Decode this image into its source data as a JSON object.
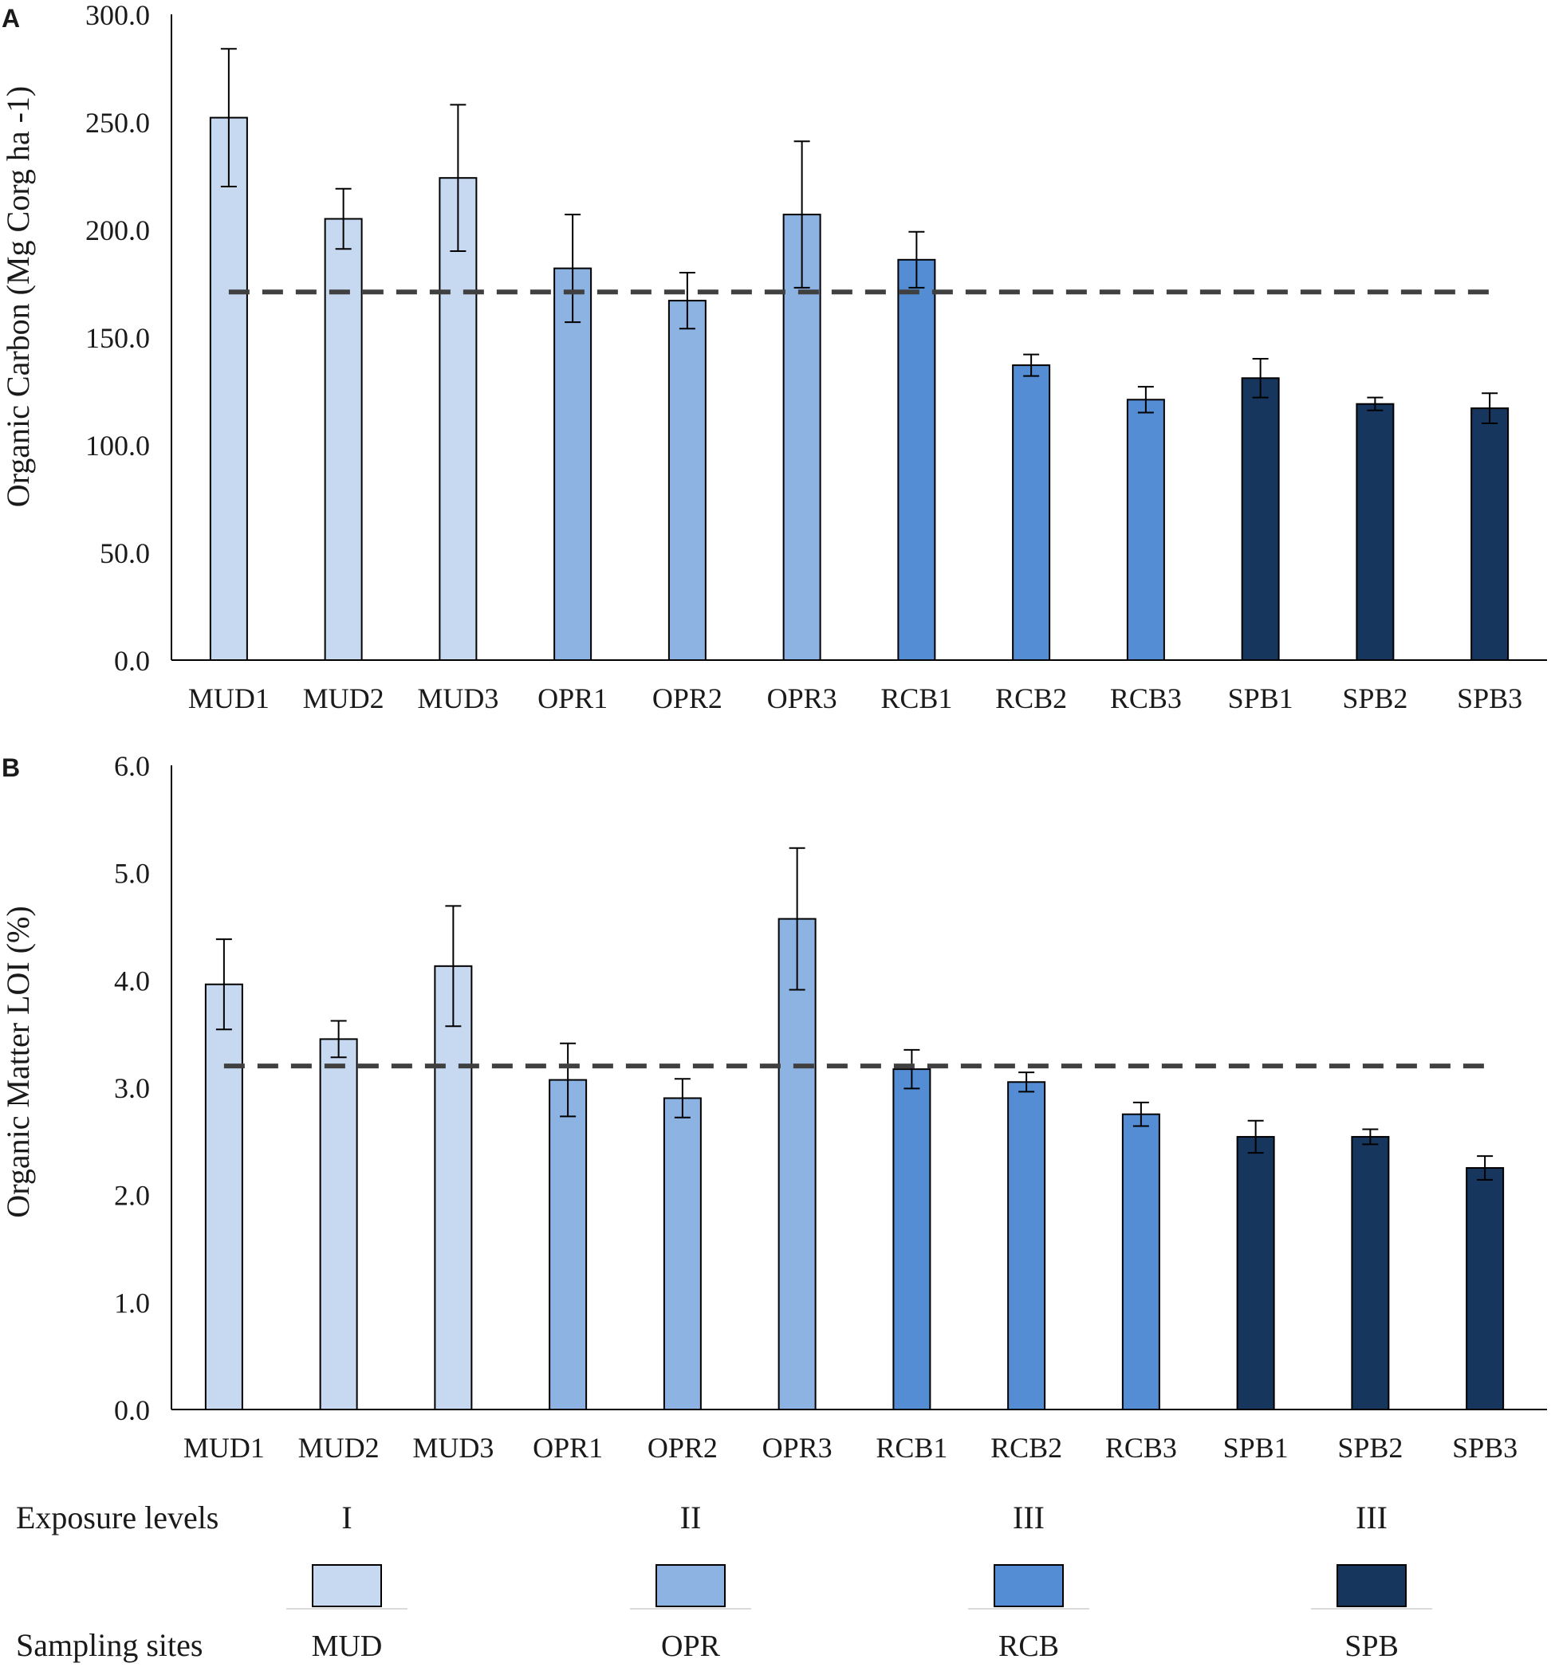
{
  "figure": {
    "exposure_label": "Exposure levels",
    "sites_label": "Sampling sites",
    "legend": [
      {
        "level": "I",
        "site": "MUD",
        "color": "#c6d9f1"
      },
      {
        "level": "II",
        "site": "OPR",
        "color": "#8db3e2"
      },
      {
        "level": "III",
        "site": "RCB",
        "color": "#548dd4"
      },
      {
        "level": "III",
        "site": "SPB",
        "color": "#17365d"
      }
    ]
  },
  "chart_data": [
    {
      "type": "bar",
      "panel": "A",
      "title": "",
      "xlabel": "",
      "ylabel": "Organic Carbon (Mg Corg ha -1)",
      "ylim": [
        0,
        300
      ],
      "ytick_values": [
        0,
        50,
        100,
        150,
        200,
        250,
        300
      ],
      "ytick_labels": [
        "0.0",
        "50.0",
        "100.0",
        "150.0",
        "200.0",
        "250.0",
        "300.0"
      ],
      "categories": [
        "MUD1",
        "MUD2",
        "MUD3",
        "OPR1",
        "OPR2",
        "OPR3",
        "RCB1",
        "RCB2",
        "RCB3",
        "SPB1",
        "SPB2",
        "SPB3"
      ],
      "values": [
        252,
        205,
        224,
        182,
        167,
        207,
        186,
        137,
        121,
        131,
        119,
        117
      ],
      "errors": [
        32,
        14,
        34,
        25,
        13,
        34,
        13,
        5,
        6,
        9,
        3,
        7
      ],
      "colors": [
        "#c6d9f1",
        "#c6d9f1",
        "#c6d9f1",
        "#8db3e2",
        "#8db3e2",
        "#8db3e2",
        "#548dd4",
        "#548dd4",
        "#548dd4",
        "#17365d",
        "#17365d",
        "#17365d"
      ],
      "reference_line": 171
    },
    {
      "type": "bar",
      "panel": "B",
      "title": "",
      "xlabel": "",
      "ylabel": "Organic Matter LOI (%)",
      "ylim": [
        0,
        6
      ],
      "ytick_values": [
        0,
        1,
        2,
        3,
        4,
        5,
        6
      ],
      "ytick_labels": [
        "0.0",
        "1.0",
        "2.0",
        "3.0",
        "4.0",
        "5.0",
        "6.0"
      ],
      "categories": [
        "MUD1",
        "MUD2",
        "MUD3",
        "OPR1",
        "OPR2",
        "OPR3",
        "RCB1",
        "RCB2",
        "RCB3",
        "SPB1",
        "SPB2",
        "SPB3"
      ],
      "values": [
        3.96,
        3.45,
        4.13,
        3.07,
        2.9,
        4.57,
        3.17,
        3.05,
        2.75,
        2.54,
        2.54,
        2.25
      ],
      "errors": [
        0.42,
        0.17,
        0.56,
        0.34,
        0.18,
        0.66,
        0.18,
        0.09,
        0.11,
        0.15,
        0.07,
        0.11
      ],
      "colors": [
        "#c6d9f1",
        "#c6d9f1",
        "#c6d9f1",
        "#8db3e2",
        "#8db3e2",
        "#8db3e2",
        "#548dd4",
        "#548dd4",
        "#548dd4",
        "#17365d",
        "#17365d",
        "#17365d"
      ],
      "reference_line": 3.2
    }
  ]
}
